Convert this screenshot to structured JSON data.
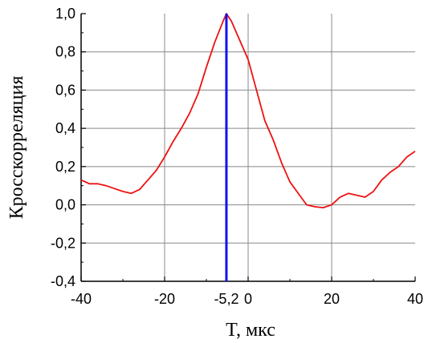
{
  "chart_data": {
    "type": "line",
    "xlabel": "T, мкс",
    "ylabel": "Кросскорреляция",
    "xlim": [
      -40,
      40
    ],
    "ylim": [
      -0.4,
      1.0
    ],
    "x_ticks": [
      {
        "value": -40,
        "label": "-40"
      },
      {
        "value": -20,
        "label": "-20"
      },
      {
        "value": -5.2,
        "label": "-5,2"
      },
      {
        "value": 0,
        "label": "0"
      },
      {
        "value": 20,
        "label": "20"
      },
      {
        "value": 40,
        "label": "40"
      }
    ],
    "y_ticks": [
      {
        "value": 1.0,
        "label": "1,0"
      },
      {
        "value": 0.8,
        "label": "0,8"
      },
      {
        "value": 0.6,
        "label": "0,6"
      },
      {
        "value": 0.4,
        "label": "0,4"
      },
      {
        "value": 0.2,
        "label": "0,2"
      },
      {
        "value": 0.0,
        "label": "0,0"
      },
      {
        "value": -0.2,
        "label": "-0,2"
      },
      {
        "value": -0.4,
        "label": "-0,4"
      }
    ],
    "grid_x": [
      -20,
      0,
      20
    ],
    "grid_y": [
      0.8,
      0.6,
      0.4,
      0.2,
      0.0,
      -0.2
    ],
    "grid": true,
    "series": [
      {
        "color": "#ee1111",
        "x": [
          -40,
          -38,
          -36,
          -34,
          -32,
          -30,
          -28,
          -26,
          -24,
          -22,
          -20,
          -18,
          -16,
          -14,
          -12,
          -10,
          -8,
          -6,
          -5.2,
          -4,
          -2,
          0,
          2,
          4,
          6,
          8,
          10,
          12,
          14,
          16,
          18,
          20,
          22,
          24,
          26,
          28,
          30,
          32,
          34,
          36,
          38,
          40
        ],
        "y": [
          0.13,
          0.11,
          0.11,
          0.1,
          0.085,
          0.07,
          0.06,
          0.08,
          0.13,
          0.18,
          0.25,
          0.33,
          0.4,
          0.48,
          0.58,
          0.72,
          0.85,
          0.96,
          1.0,
          0.96,
          0.86,
          0.76,
          0.6,
          0.44,
          0.34,
          0.22,
          0.12,
          0.06,
          0.0,
          -0.01,
          -0.015,
          0.0,
          0.04,
          0.06,
          0.05,
          0.04,
          0.07,
          0.13,
          0.17,
          0.2,
          0.25,
          0.28
        ]
      }
    ],
    "marker_line": {
      "x": -5.2,
      "color": "#1111ee"
    }
  }
}
